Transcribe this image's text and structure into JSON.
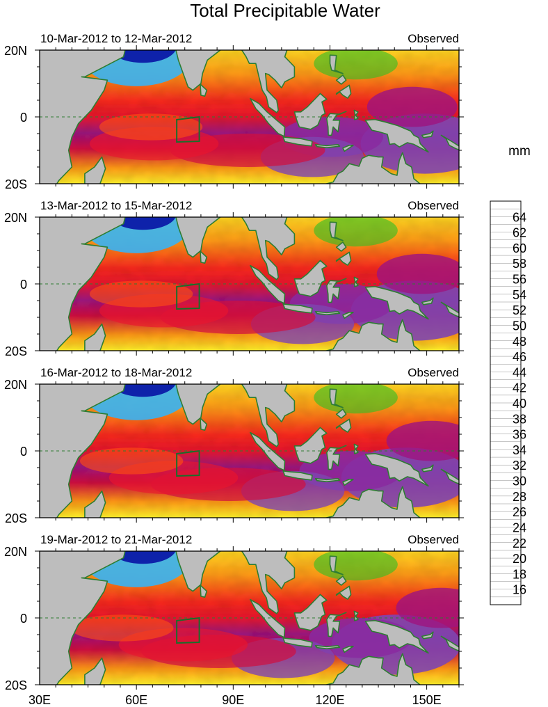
{
  "chart_data": {
    "type": "heatmap",
    "title": "Total Precipitable Water",
    "units_label": "mm",
    "variable": "total precipitable water",
    "x_ticks": [
      "30E",
      "60E",
      "90E",
      "120E",
      "150E"
    ],
    "x_tick_values": [
      30,
      60,
      90,
      120,
      150
    ],
    "y_ticks": [
      "20N",
      "0",
      "20S"
    ],
    "y_tick_values": [
      20,
      0,
      -20
    ],
    "xlim": [
      30,
      160
    ],
    "ylim": [
      -20,
      20
    ],
    "panels": [
      {
        "date_range": "10-Mar-2012 to 12-Mar-2012",
        "label": "Observed"
      },
      {
        "date_range": "13-Mar-2012 to 15-Mar-2012",
        "label": "Observed"
      },
      {
        "date_range": "16-Mar-2012 to 18-Mar-2012",
        "label": "Observed"
      },
      {
        "date_range": "19-Mar-2012 to 21-Mar-2012",
        "label": "Observed"
      }
    ],
    "colorbar": {
      "min": 14,
      "max": 66,
      "step": 2,
      "tick_labels": [
        "16",
        "18",
        "20",
        "22",
        "24",
        "26",
        "28",
        "30",
        "32",
        "34",
        "36",
        "38",
        "40",
        "42",
        "44",
        "46",
        "48",
        "50",
        "52",
        "54",
        "56",
        "58",
        "60",
        "62",
        "64"
      ]
    }
  }
}
